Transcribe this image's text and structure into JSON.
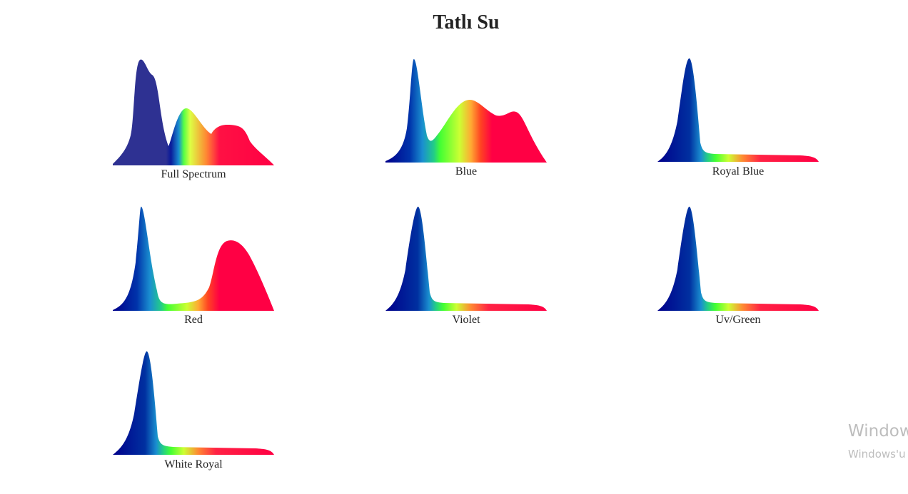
{
  "header": {
    "title": "Tatlı Su"
  },
  "spectra": [
    {
      "label": "Full Spectrum"
    },
    {
      "label": "Blue"
    },
    {
      "label": "Royal Blue"
    },
    {
      "label": "Red"
    },
    {
      "label": "Violet"
    },
    {
      "label": "Uv/Green"
    },
    {
      "label": "White Royal"
    }
  ],
  "watermark": {
    "title": "Windows'u Etkinleştir",
    "subtitle": "Windows'u etkinleştirmek için Ayarlar'a gidin."
  }
}
